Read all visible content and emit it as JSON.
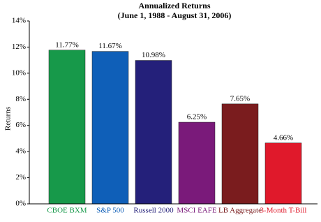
{
  "chart_data": {
    "type": "bar",
    "title": "Annualized Returns",
    "subtitle": "(June 1, 1988 - August 31, 2006)",
    "y_label": "Returns",
    "categories": [
      "CBOE BXM",
      "S&P 500",
      "Russell 2000",
      "MSCI EAFE",
      "LB Aggregate",
      "3-Month T-Bill"
    ],
    "values": [
      11.77,
      11.67,
      10.98,
      6.25,
      7.65,
      4.66
    ],
    "value_labels": [
      "11.77%",
      "11.67%",
      "10.98%",
      "6.25%",
      "7.65%",
      "4.66%"
    ],
    "colors": [
      "#17994a",
      "#0f5fb8",
      "#24207a",
      "#7a1a7a",
      "#7a1c1e",
      "#e0192b"
    ],
    "ylim": [
      0,
      14
    ],
    "yticks": [
      {
        "value": 0,
        "label": "0%"
      },
      {
        "value": 2,
        "label": "2%"
      },
      {
        "value": 4,
        "label": "4%"
      },
      {
        "value": 6,
        "label": "6%"
      },
      {
        "value": 8,
        "label": "8%"
      },
      {
        "value": 10,
        "label": "10%"
      },
      {
        "value": 12,
        "label": "12%"
      },
      {
        "value": 14,
        "label": "14%"
      }
    ],
    "grid": false
  }
}
